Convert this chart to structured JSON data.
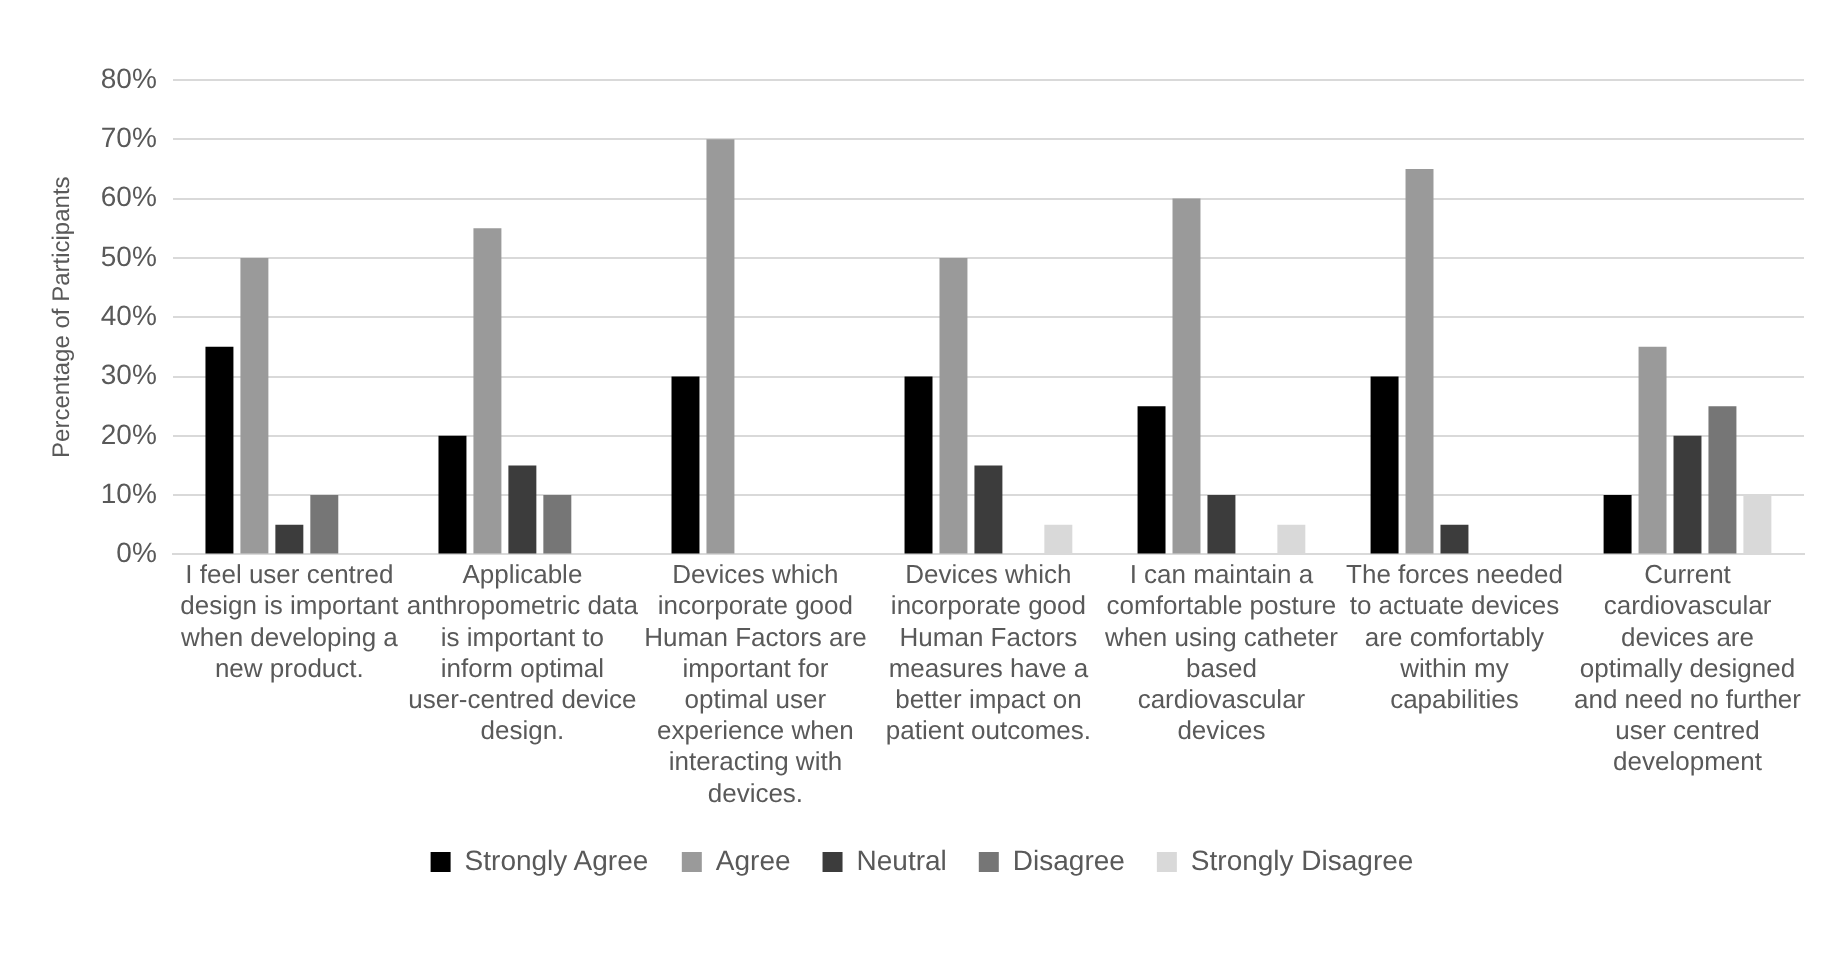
{
  "chart_data": {
    "type": "bar",
    "ylabel": "Percentage of Participants",
    "categories": [
      "I feel user centred design is important when developing a new product.",
      "Applicable anthropometric data is important to inform optimal user-centred device design.",
      "Devices which incorporate good Human Factors are important for optimal user experience when interacting with devices.",
      "Devices which incorporate good Human Factors measures have a better impact on patient outcomes.",
      "I can maintain a comfortable posture when using catheter based cardiovascular devices",
      "The forces needed to actuate devices are comfortably within my capabilities",
      "Current cardiovascular devices are optimally designed and need no further user centred development"
    ],
    "series": [
      {
        "name": "Strongly Agree",
        "color": "#000000",
        "values": [
          35,
          20,
          30,
          30,
          25,
          30,
          10
        ]
      },
      {
        "name": "Agree",
        "color": "#9a9a9a",
        "values": [
          50,
          55,
          70,
          50,
          60,
          65,
          35
        ]
      },
      {
        "name": "Neutral",
        "color": "#3c3c3c",
        "values": [
          5,
          15,
          0,
          15,
          10,
          5,
          20
        ]
      },
      {
        "name": "Disagree",
        "color": "#767676",
        "values": [
          10,
          10,
          0,
          0,
          0,
          0,
          25
        ]
      },
      {
        "name": "Strongly Disagree",
        "color": "#d9d9d9",
        "values": [
          0,
          0,
          0,
          5,
          5,
          0,
          10
        ]
      }
    ],
    "ylim": [
      0,
      80
    ],
    "yticks": [
      {
        "value": 0,
        "label": "0%"
      },
      {
        "value": 10,
        "label": "10%"
      },
      {
        "value": 20,
        "label": "20%"
      },
      {
        "value": 30,
        "label": "30%"
      },
      {
        "value": 40,
        "label": "40%"
      },
      {
        "value": 50,
        "label": "50%"
      },
      {
        "value": 60,
        "label": "60%"
      },
      {
        "value": 70,
        "label": "70%"
      },
      {
        "value": 80,
        "label": "80%"
      }
    ],
    "grid": "y",
    "legend": "bottom"
  }
}
